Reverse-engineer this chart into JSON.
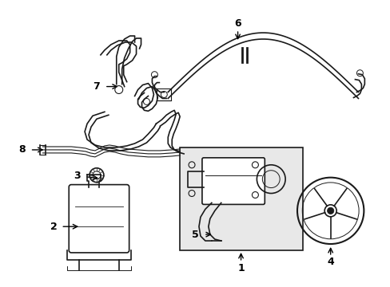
{
  "bg_color": "#ffffff",
  "line_color": "#1a1a1a",
  "label_color": "#000000",
  "box_bg": "#e8e8e8",
  "figsize": [
    4.89,
    3.6
  ],
  "dpi": 100
}
